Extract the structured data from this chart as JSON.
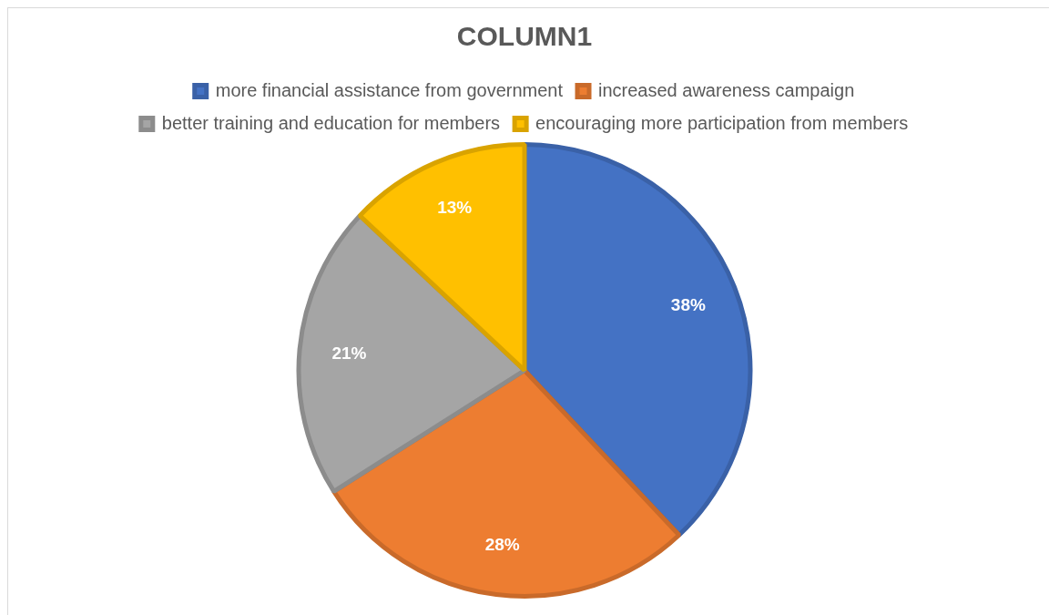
{
  "chart_data": {
    "type": "pie",
    "title": "COLUMN1",
    "categories": [
      "more financial assistance from government",
      "increased awareness campaign",
      "better training and education for members",
      "encouraging more participation from members"
    ],
    "values": [
      38,
      28,
      21,
      13
    ],
    "colors": [
      "#4472c4",
      "#ed7d31",
      "#a5a5a5",
      "#ffc000"
    ],
    "value_labels": [
      "38%",
      "28%",
      "21%",
      "13%"
    ],
    "legend": "top"
  }
}
